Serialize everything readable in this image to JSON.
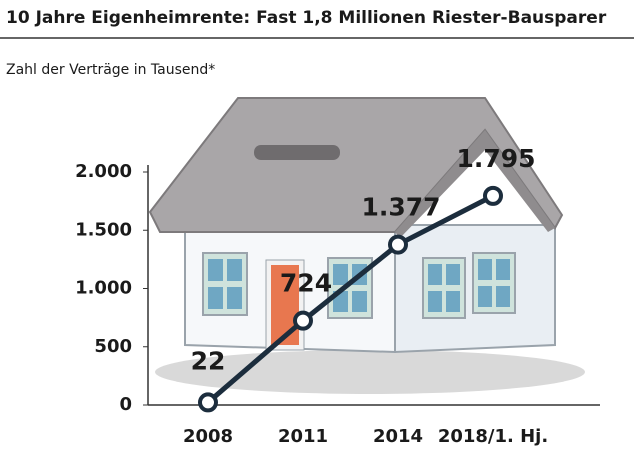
{
  "chart_data": {
    "type": "line",
    "title": "10 Jahre Eigenheimrente: Fast 1,8 Millionen Riester-Bausparer",
    "subtitle": "Zahl der Verträge in Tausend*",
    "categories": [
      "2008",
      "2011",
      "2014",
      "2018/1. Hj."
    ],
    "values": [
      22,
      724,
      1377,
      1795
    ],
    "value_labels": [
      "22",
      "724",
      "1.377",
      "1.795"
    ],
    "color": "#1c2d3d",
    "ylim": [
      0,
      2000
    ],
    "yticks": [
      0,
      500,
      {
        "value": 1000,
        "label": "1.000"
      },
      {
        "value": 1500,
        "label": "1.500"
      },
      {
        "value": 2000,
        "label": "2.000"
      }
    ]
  }
}
